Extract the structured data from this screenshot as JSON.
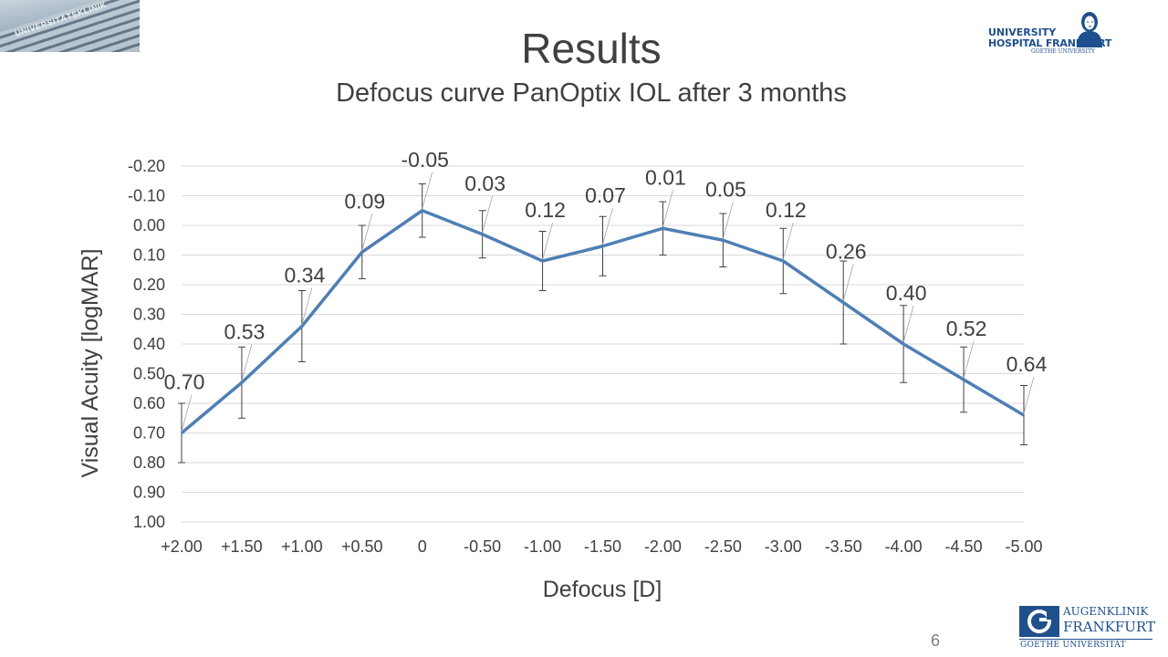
{
  "slide": {
    "title": "Results",
    "subtitle": "Defocus curve PanOptix IOL after 3 months",
    "page_number": "6",
    "photo_sign": "UNIVERSITÄTSKLINIK"
  },
  "logos": {
    "university": {
      "line1": "UNIVERSITY",
      "line2": "HOSPITAL FRANKFURT",
      "line3": "GOETHE UNIVERSITY"
    },
    "augenklinik": {
      "line1": "AUGENKLINIK",
      "line2": "FRANKFURT",
      "line3": "GOETHE UNIVERSITÄT"
    }
  },
  "colors": {
    "line": "#4e7fb5",
    "text": "#404040",
    "grid": "#d9d9d9",
    "error_bar": "#404040",
    "brand_blue": "#1f4f8c"
  },
  "chart_data": {
    "type": "line",
    "title": "",
    "xlabel": "Defocus [D]",
    "ylabel": "Visual Acuity [logMAR]",
    "categories": [
      "+2.00",
      "+1.50",
      "+1.00",
      "+0.50",
      "0",
      "-0.50",
      "-1.00",
      "-1.50",
      "-2.00",
      "-2.50",
      "-3.00",
      "-3.50",
      "-4.00",
      "-4.50",
      "-5.00"
    ],
    "y_axis": {
      "min": -0.2,
      "max": 1.0,
      "reversed": true,
      "step": 0.1,
      "tick_labels": [
        "-0.20",
        "-0.10",
        "0.00",
        "0.10",
        "0.20",
        "0.30",
        "0.40",
        "0.50",
        "0.60",
        "0.70",
        "0.80",
        "0.90",
        "1.00"
      ]
    },
    "grid": true,
    "legend": "none",
    "series": [
      {
        "values": [
          0.7,
          0.53,
          0.34,
          0.09,
          -0.05,
          0.03,
          0.12,
          0.07,
          0.01,
          0.05,
          0.12,
          0.26,
          0.4,
          0.52,
          0.64
        ],
        "data_labels": [
          "0.70",
          "0.53",
          "0.34",
          "0.09",
          "-0.05",
          "0.03",
          "0.12",
          "0.07",
          "0.01",
          "0.05",
          "0.12",
          "0.26",
          "0.40",
          "0.52",
          "0.64"
        ],
        "error": [
          0.1,
          0.12,
          0.12,
          0.09,
          0.09,
          0.08,
          0.1,
          0.1,
          0.09,
          0.09,
          0.11,
          0.14,
          0.13,
          0.11,
          0.1
        ]
      }
    ]
  }
}
